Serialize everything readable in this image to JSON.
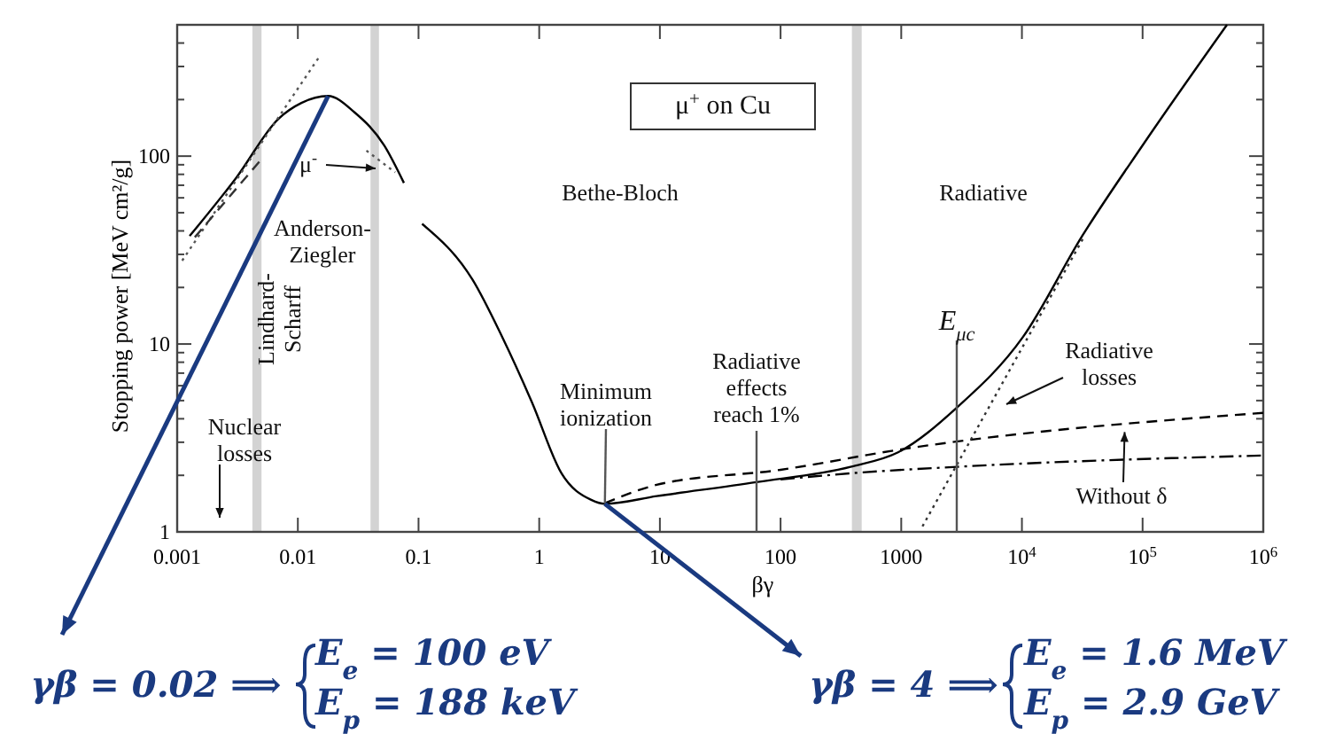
{
  "chart_data": {
    "type": "line",
    "xlabel": "βγ",
    "ylabel": "Stopping power [MeV cm²/g]",
    "xlim": [
      0.001,
      1000000
    ],
    "ylim": [
      1,
      500
    ],
    "log": "xy",
    "grid": false,
    "marker": "none",
    "xticks": [
      0.001,
      0.01,
      0.1,
      1,
      10,
      100,
      1000,
      {
        "value": 10000,
        "label": "10$^{4}$"
      },
      {
        "value": 100000,
        "label": "10$^{5}$"
      },
      {
        "value": 1000000,
        "label": "10$^{6}$"
      }
    ],
    "yticks": [
      1,
      {
        "value": 2,
        "label": null
      },
      {
        "value": 3,
        "label": null
      },
      {
        "value": 4,
        "label": null
      },
      {
        "value": 5,
        "label": null
      },
      {
        "value": 6,
        "label": null
      },
      {
        "value": 7,
        "label": null
      },
      {
        "value": 8,
        "label": null
      },
      {
        "value": 9,
        "label": null
      },
      10,
      {
        "value": 20,
        "label": null
      },
      {
        "value": 30,
        "label": null
      },
      {
        "value": 40,
        "label": null
      },
      {
        "value": 50,
        "label": null
      },
      {
        "value": 60,
        "label": null
      },
      {
        "value": 70,
        "label": null
      },
      {
        "value": 80,
        "label": null
      },
      {
        "value": 90,
        "label": null
      },
      100,
      {
        "value": 200,
        "label": null
      },
      {
        "value": 300,
        "label": null
      },
      {
        "value": 400,
        "label": null
      },
      {
        "value": 500,
        "label": null
      }
    ],
    "bands": [
      {
        "axis": "x",
        "from": 0.0042,
        "to": 0.005,
        "color": "#c8c8c8"
      },
      {
        "axis": "x",
        "from": 0.04,
        "to": 0.047,
        "color": "#c8c8c8"
      },
      {
        "axis": "x",
        "from": 390,
        "to": 470,
        "color": "#c8c8c8"
      }
    ],
    "series": [
      {
        "color": "#000000",
        "line_style": "solid",
        "x": [
          0.00127,
          0.0031,
          0.0069,
          0.0107,
          0.0178,
          0.0295,
          0.052,
          0.0757,
          0.085,
          0.107,
          0.28,
          0.49,
          0.87,
          1.53,
          2.7,
          3.5,
          9.4,
          63,
          380,
          950,
          2900,
          10200,
          31600,
          98000,
          500000
        ],
        "values": [
          37.6,
          77,
          158,
          192,
          209,
          171,
          114,
          72,
          null,
          43.6,
          22,
          11,
          4.9,
          2.05,
          1.48,
          1.41,
          1.55,
          1.84,
          2.22,
          2.66,
          4.6,
          10.9,
          37.6,
          112,
          500
        ]
      },
      {
        "color": "#555555",
        "line_style": "dotted",
        "x": [
          0.0011,
          0.015
        ],
        "values": [
          27.8,
          337
        ]
      },
      {
        "color": "#333333",
        "line_style": "dashed",
        "x": [
          0.0014,
          0.0049
        ],
        "values": [
          37,
          95
        ]
      },
      {
        "color": "#555555",
        "line_style": "dotted",
        "x": [
          0.037,
          0.064
        ],
        "values": [
          107,
          82
        ]
      },
      {
        "color": "#000000",
        "line_style": "dashed",
        "x": [
          3.5,
          9.4,
          100,
          1000,
          1000000
        ],
        "values": [
          1.42,
          1.78,
          2.14,
          2.75,
          4.3
        ]
      },
      {
        "color": "#000000",
        "line_style": "dashdot",
        "x": [
          100,
          380,
          2900,
          1000000
        ],
        "values": [
          1.9,
          2.05,
          2.22,
          2.55
        ]
      },
      {
        "color": "#333333",
        "line_style": "dotted",
        "x": [
          1500,
          33000
        ],
        "values": [
          1.07,
          37.6
        ]
      }
    ],
    "annotations": [
      "μ$^{+}$ on Cu",
      "Bethe-Bloch",
      "Radiative",
      "Anderson-\nZiegler",
      "Lindhard-\nScharff",
      "Nuclear\nlosses",
      "μ$^{-}$",
      {
        "text": "Minimum\nionization",
        "x": 3.5,
        "y": 1.41
      },
      "Radiative\neffects\nreach 1%",
      "E$_{μc}$",
      "Radiative\nlosses",
      {
        "text": "Without δ",
        "x": 71000,
        "y": 3.4
      },
      {
        "text": "γβ = 0.02 ⟹",
        "x": 0.0178,
        "y": 209
      },
      "E$_{e}$ = 100 eV",
      "E$_{p}$ = 188 keV",
      {
        "text": "γβ = 4 ⟹",
        "x": 3.5,
        "y": 1.41
      },
      "E$_{e}$ = 1.6 MeV",
      "E$_{p}$ = 2.9 GeV"
    ]
  }
}
